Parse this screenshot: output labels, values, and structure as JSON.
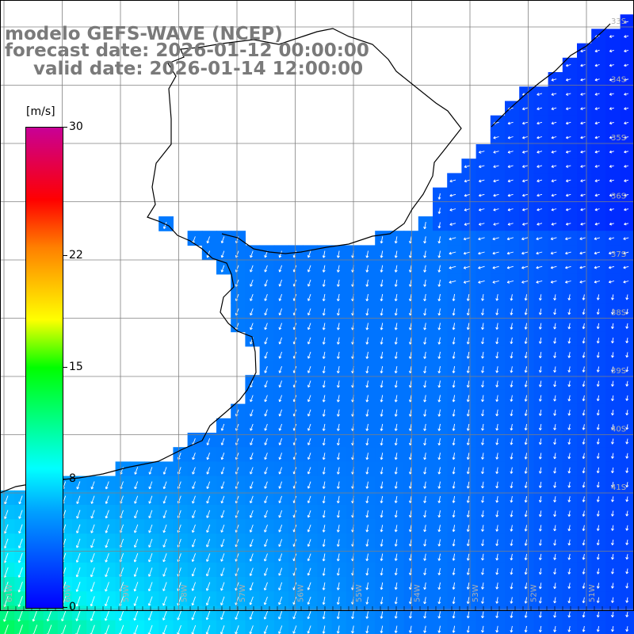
{
  "header": {
    "line1": "modelo GEFS-WAVE (NCEP)",
    "line2": "forecast date: 2026-01-12 00:00:00",
    "line3": "valid date: 2026-01-14 12:00:00"
  },
  "colorbar": {
    "unit": "[m/s]",
    "ticks": [
      "30",
      "22",
      "15",
      "8",
      "0"
    ],
    "tick_values": [
      30,
      22,
      15,
      8,
      0
    ],
    "max": 30,
    "colors": [
      "#0000ff",
      "#00a0ff",
      "#00ffff",
      "#00ff00",
      "#ffff00",
      "#ff8000",
      "#ff0000",
      "#c80096"
    ]
  },
  "map": {
    "field": "wind speed and direction",
    "lat_labels": [
      "33S",
      "34S",
      "35S",
      "36S",
      "37S",
      "38S",
      "39S",
      "40S",
      "41S"
    ],
    "lon_labels": [
      "61W",
      "60W",
      "59W",
      "58W",
      "57W",
      "56W",
      "55W",
      "54W",
      "53W",
      "52W",
      "51W"
    ],
    "colors": {
      "land": "#ffffff",
      "coast": "#000000",
      "grid": "#808080",
      "arrow": "#ffffff",
      "label": "#aaaaaa"
    }
  }
}
